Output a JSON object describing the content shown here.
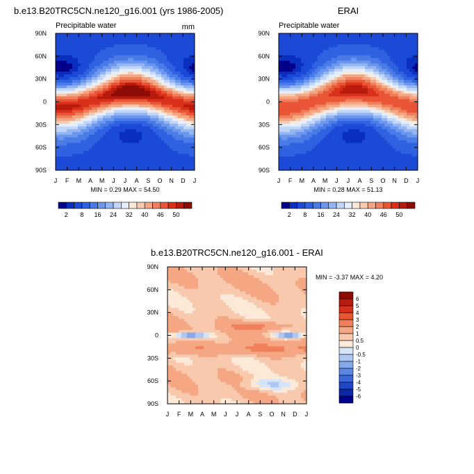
{
  "chart_data": [
    {
      "type": "heatmap",
      "title": "b.e13.B20TRC5CN.ne120_g16.001 (yrs 1986-2005)",
      "left_label": "Precipitable water",
      "units": "mm",
      "x_ticks": [
        "J",
        "F",
        "M",
        "A",
        "M",
        "J",
        "J",
        "A",
        "S",
        "O",
        "N",
        "D",
        "J"
      ],
      "y_ticks": [
        "90N",
        "60N",
        "30N",
        "0",
        "30S",
        "60S",
        "90S"
      ],
      "ylim": [
        -90,
        90
      ],
      "stats": "MIN =  0.29 MAX =  54.50",
      "min": 0.29,
      "max": 54.5,
      "colorbar": {
        "orientation": "horizontal",
        "labels": [
          "2",
          "8",
          "16",
          "24",
          "32",
          "40",
          "46",
          "50"
        ],
        "colors": [
          "#00008b",
          "#0a2fbf",
          "#1a4ad6",
          "#2f62e0",
          "#4a7be6",
          "#6d97ec",
          "#95b5f1",
          "#c2d6f6",
          "#e6eefa",
          "#fde9d8",
          "#f9c9ad",
          "#f5a683",
          "#f0805c",
          "#ea5536",
          "#d9301b",
          "#b81a0e",
          "#8b0d05"
        ]
      }
    },
    {
      "type": "heatmap",
      "title": "ERAI",
      "left_label": "Precipitable water",
      "x_ticks": [
        "J",
        "F",
        "M",
        "A",
        "M",
        "J",
        "J",
        "A",
        "S",
        "O",
        "N",
        "D",
        "J"
      ],
      "y_ticks": [
        "90N",
        "60N",
        "30N",
        "0",
        "30S",
        "60S",
        "90S"
      ],
      "ylim": [
        -90,
        90
      ],
      "stats": "MIN =  0.28 MAX =  51.13",
      "min": 0.28,
      "max": 51.13,
      "colorbar": {
        "orientation": "horizontal",
        "labels": [
          "2",
          "8",
          "16",
          "24",
          "32",
          "40",
          "46",
          "50"
        ],
        "colors": [
          "#00008b",
          "#0a2fbf",
          "#1a4ad6",
          "#2f62e0",
          "#4a7be6",
          "#6d97ec",
          "#95b5f1",
          "#c2d6f6",
          "#e6eefa",
          "#fde9d8",
          "#f9c9ad",
          "#f5a683",
          "#f0805c",
          "#ea5536",
          "#d9301b",
          "#b81a0e",
          "#8b0d05"
        ]
      }
    },
    {
      "type": "heatmap",
      "title": "b.e13.B20TRC5CN.ne120_g16.001 - ERAI",
      "x_ticks": [
        "J",
        "F",
        "M",
        "A",
        "M",
        "J",
        "J",
        "A",
        "S",
        "O",
        "N",
        "D",
        "J"
      ],
      "y_ticks": [
        "90N",
        "60N",
        "30N",
        "0",
        "30S",
        "60S",
        "90S"
      ],
      "ylim": [
        -90,
        90
      ],
      "stats": "MIN = -3.37 MAX =   4.20",
      "min": -3.37,
      "max": 4.2,
      "colorbar": {
        "orientation": "vertical",
        "labels": [
          "6",
          "5",
          "4",
          "3",
          "2",
          "1",
          "0.5",
          "0",
          "-0.5",
          "-1",
          "-2",
          "-3",
          "-4",
          "-5",
          "-6"
        ],
        "colors": [
          "#8b0d05",
          "#b81a0e",
          "#d9301b",
          "#ea5536",
          "#f0805c",
          "#f5a683",
          "#f9c9ad",
          "#fde9d8",
          "#d6e4f7",
          "#aec8f2",
          "#86a9ec",
          "#5c87e3",
          "#3a67da",
          "#1f46c6",
          "#0a2aa5",
          "#00008b"
        ]
      }
    }
  ]
}
